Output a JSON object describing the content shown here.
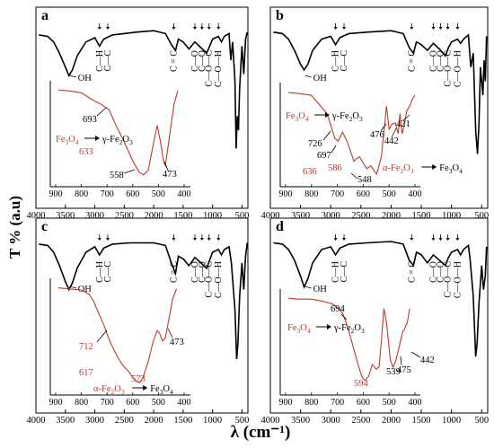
{
  "figure": {
    "ylabel": "T %  (a.u)",
    "xlabel": "λ (cm⁻¹)",
    "colors": {
      "main": "#000000",
      "inset": "#c0392b",
      "red_text": "#c0392b"
    }
  },
  "chart_data": [
    {
      "panel": "a",
      "type": "line",
      "x_axis": {
        "range": [
          4000,
          400
        ],
        "ticks": [
          4000,
          3500,
          3000,
          2500,
          2000,
          1500,
          1000,
          500
        ]
      },
      "main_spectrum": [
        [
          3950,
          0.93
        ],
        [
          3800,
          0.92
        ],
        [
          3700,
          0.88
        ],
        [
          3600,
          0.8
        ],
        [
          3500,
          0.7
        ],
        [
          3440,
          0.64
        ],
        [
          3380,
          0.68
        ],
        [
          3300,
          0.78
        ],
        [
          3150,
          0.88
        ],
        [
          3000,
          0.91
        ],
        [
          2920,
          0.85
        ],
        [
          2850,
          0.9
        ],
        [
          2700,
          0.93
        ],
        [
          2500,
          0.94
        ],
        [
          2300,
          0.95
        ],
        [
          2000,
          0.96
        ],
        [
          1800,
          0.94
        ],
        [
          1700,
          0.86
        ],
        [
          1630,
          0.82
        ],
        [
          1580,
          0.9
        ],
        [
          1500,
          0.88
        ],
        [
          1400,
          0.83
        ],
        [
          1300,
          0.88
        ],
        [
          1200,
          0.84
        ],
        [
          1100,
          0.8
        ],
        [
          1050,
          0.85
        ],
        [
          1000,
          0.9
        ],
        [
          900,
          0.92
        ],
        [
          850,
          0.88
        ],
        [
          800,
          0.92
        ],
        [
          720,
          0.94
        ],
        [
          690,
          0.75
        ],
        [
          660,
          0.88
        ],
        [
          620,
          0.6
        ],
        [
          600,
          0.12
        ],
        [
          580,
          0.35
        ],
        [
          560,
          0.25
        ],
        [
          540,
          0.55
        ],
        [
          500,
          0.85
        ],
        [
          470,
          0.65
        ],
        [
          440,
          0.9
        ],
        [
          410,
          0.95
        ]
      ],
      "peak_labels": [
        "OH",
        "C—H",
        "C—C",
        "C = C",
        "C—O",
        "C—O",
        "C—O—C",
        "C—O—H"
      ],
      "inset": {
        "x_ticks": [
          900,
          800,
          700,
          600,
          500,
          400
        ],
        "curve": [
          [
            890,
            0.96
          ],
          [
            850,
            0.95
          ],
          [
            800,
            0.93
          ],
          [
            760,
            0.86
          ],
          [
            720,
            0.8
          ],
          [
            693,
            0.75
          ],
          [
            660,
            0.55
          ],
          [
            633,
            0.4
          ],
          [
            600,
            0.2
          ],
          [
            575,
            0.08
          ],
          [
            558,
            0.05
          ],
          [
            540,
            0.1
          ],
          [
            520,
            0.38
          ],
          [
            505,
            0.58
          ],
          [
            492,
            0.4
          ],
          [
            480,
            0.2
          ],
          [
            473,
            0.15
          ],
          [
            460,
            0.4
          ],
          [
            440,
            0.8
          ],
          [
            425,
            0.95
          ]
        ],
        "annotations": [
          {
            "text": "693",
            "color": "black"
          },
          {
            "text": "633",
            "color": "red"
          },
          {
            "text": "558",
            "color": "black"
          },
          {
            "text": "473",
            "color": "black"
          }
        ],
        "phase_label": {
          "from": "Fe3O4",
          "to": "γ-Fe2O3"
        }
      }
    },
    {
      "panel": "b",
      "type": "line",
      "x_axis": {
        "range": [
          4000,
          400
        ],
        "ticks": [
          4000,
          3500,
          3000,
          2500,
          2000,
          1500,
          1000,
          500
        ]
      },
      "main_spectrum": [
        [
          3950,
          0.95
        ],
        [
          3800,
          0.94
        ],
        [
          3700,
          0.9
        ],
        [
          3600,
          0.82
        ],
        [
          3500,
          0.72
        ],
        [
          3440,
          0.68
        ],
        [
          3380,
          0.72
        ],
        [
          3300,
          0.82
        ],
        [
          3150,
          0.9
        ],
        [
          3000,
          0.92
        ],
        [
          2920,
          0.86
        ],
        [
          2850,
          0.91
        ],
        [
          2700,
          0.94
        ],
        [
          2400,
          0.95
        ],
        [
          2000,
          0.96
        ],
        [
          1800,
          0.94
        ],
        [
          1700,
          0.84
        ],
        [
          1630,
          0.8
        ],
        [
          1580,
          0.88
        ],
        [
          1500,
          0.86
        ],
        [
          1400,
          0.82
        ],
        [
          1300,
          0.87
        ],
        [
          1200,
          0.83
        ],
        [
          1100,
          0.78
        ],
        [
          1050,
          0.84
        ],
        [
          1000,
          0.88
        ],
        [
          900,
          0.9
        ],
        [
          850,
          0.87
        ],
        [
          800,
          0.9
        ],
        [
          720,
          0.93
        ],
        [
          680,
          0.7
        ],
        [
          640,
          0.8
        ],
        [
          600,
          0.25
        ],
        [
          570,
          0.08
        ],
        [
          545,
          0.3
        ],
        [
          520,
          0.7
        ],
        [
          480,
          0.5
        ],
        [
          460,
          0.75
        ],
        [
          440,
          0.6
        ],
        [
          420,
          0.92
        ]
      ],
      "peak_labels": [
        "OH",
        "C—H",
        "C—C",
        "C = C",
        "C—O",
        "C—O",
        "C—O—C",
        "C—O—H"
      ],
      "inset": {
        "x_ticks": [
          900,
          800,
          700,
          600,
          500,
          400
        ],
        "curve": [
          [
            890,
            0.95
          ],
          [
            850,
            0.94
          ],
          [
            800,
            0.92
          ],
          [
            770,
            0.82
          ],
          [
            740,
            0.72
          ],
          [
            726,
            0.6
          ],
          [
            710,
            0.45
          ],
          [
            697,
            0.42
          ],
          [
            680,
            0.52
          ],
          [
            660,
            0.4
          ],
          [
            636,
            0.2
          ],
          [
            615,
            0.25
          ],
          [
            600,
            0.18
          ],
          [
            586,
            0.12
          ],
          [
            570,
            0.15
          ],
          [
            555,
            0.08
          ],
          [
            548,
            0.06
          ],
          [
            530,
            0.25
          ],
          [
            510,
            0.8
          ],
          [
            500,
            0.55
          ],
          [
            490,
            0.6
          ],
          [
            476,
            0.62
          ],
          [
            465,
            0.5
          ],
          [
            458,
            0.72
          ],
          [
            450,
            0.5
          ],
          [
            442,
            0.58
          ],
          [
            432,
            0.75
          ],
          [
            421,
            0.8
          ],
          [
            410,
            0.88
          ],
          [
            400,
            0.92
          ]
        ],
        "annotations": [
          {
            "text": "726",
            "color": "black"
          },
          {
            "text": "697",
            "color": "black"
          },
          {
            "text": "636",
            "color": "red"
          },
          {
            "text": "586",
            "color": "red"
          },
          {
            "text": "548",
            "color": "black"
          },
          {
            "text": "476",
            "color": "black"
          },
          {
            "text": "442",
            "color": "black"
          },
          {
            "text": "421",
            "color": "black"
          }
        ],
        "phase_label": {
          "from": "Fe3O4",
          "to": "γ-Fe2O3"
        },
        "phase_label_2": {
          "from": "α-Fe2O3",
          "to": "Fe3O4"
        }
      }
    },
    {
      "panel": "c",
      "type": "line",
      "x_axis": {
        "range": [
          4000,
          400
        ],
        "ticks": [
          4000,
          3500,
          3000,
          2500,
          2000,
          1500,
          1000,
          500
        ]
      },
      "main_spectrum": [
        [
          3950,
          0.94
        ],
        [
          3800,
          0.93
        ],
        [
          3700,
          0.88
        ],
        [
          3600,
          0.78
        ],
        [
          3500,
          0.66
        ],
        [
          3440,
          0.6
        ],
        [
          3380,
          0.65
        ],
        [
          3300,
          0.76
        ],
        [
          3150,
          0.88
        ],
        [
          3000,
          0.92
        ],
        [
          2920,
          0.86
        ],
        [
          2850,
          0.91
        ],
        [
          2700,
          0.94
        ],
        [
          2400,
          0.95
        ],
        [
          2000,
          0.95
        ],
        [
          1800,
          0.93
        ],
        [
          1700,
          0.8
        ],
        [
          1630,
          0.72
        ],
        [
          1580,
          0.85
        ],
        [
          1500,
          0.83
        ],
        [
          1400,
          0.78
        ],
        [
          1300,
          0.84
        ],
        [
          1200,
          0.8
        ],
        [
          1100,
          0.76
        ],
        [
          1050,
          0.82
        ],
        [
          1000,
          0.88
        ],
        [
          900,
          0.9
        ],
        [
          850,
          0.86
        ],
        [
          800,
          0.9
        ],
        [
          720,
          0.92
        ],
        [
          680,
          0.8
        ],
        [
          620,
          0.45
        ],
        [
          590,
          0.08
        ],
        [
          570,
          0.2
        ],
        [
          540,
          0.55
        ],
        [
          500,
          0.8
        ],
        [
          470,
          0.6
        ],
        [
          440,
          0.85
        ],
        [
          410,
          0.95
        ]
      ],
      "peak_labels": [
        "OH",
        "C—H",
        "C—C",
        "C = C",
        "C—O",
        "C—O",
        "C—O—C",
        "C—O—H"
      ],
      "inset": {
        "x_ticks": [
          900,
          800,
          700,
          600,
          500,
          400
        ],
        "curve": [
          [
            890,
            0.96
          ],
          [
            850,
            0.95
          ],
          [
            800,
            0.94
          ],
          [
            770,
            0.9
          ],
          [
            750,
            0.82
          ],
          [
            730,
            0.7
          ],
          [
            712,
            0.6
          ],
          [
            690,
            0.45
          ],
          [
            660,
            0.3
          ],
          [
            640,
            0.22
          ],
          [
            617,
            0.16
          ],
          [
            600,
            0.1
          ],
          [
            585,
            0.06
          ],
          [
            573,
            0.05
          ],
          [
            560,
            0.1
          ],
          [
            540,
            0.25
          ],
          [
            520,
            0.45
          ],
          [
            505,
            0.55
          ],
          [
            495,
            0.52
          ],
          [
            485,
            0.45
          ],
          [
            473,
            0.48
          ],
          [
            460,
            0.65
          ],
          [
            445,
            0.85
          ],
          [
            430,
            0.95
          ]
        ],
        "annotations": [
          {
            "text": "712",
            "color": "red"
          },
          {
            "text": "617",
            "color": "red"
          },
          {
            "text": "573",
            "color": "red"
          },
          {
            "text": "473",
            "color": "black"
          }
        ],
        "phase_label": {
          "from": "α-Fe2O3",
          "to": "Fe3O4"
        }
      }
    },
    {
      "panel": "d",
      "type": "line",
      "x_axis": {
        "range": [
          4000,
          400
        ],
        "ticks": [
          4000,
          3500,
          3000,
          2500,
          2000,
          1500,
          1000,
          500
        ]
      },
      "main_spectrum": [
        [
          3950,
          0.95
        ],
        [
          3800,
          0.94
        ],
        [
          3700,
          0.9
        ],
        [
          3600,
          0.82
        ],
        [
          3500,
          0.7
        ],
        [
          3440,
          0.62
        ],
        [
          3380,
          0.68
        ],
        [
          3300,
          0.8
        ],
        [
          3150,
          0.9
        ],
        [
          3000,
          0.92
        ],
        [
          2920,
          0.86
        ],
        [
          2850,
          0.91
        ],
        [
          2700,
          0.94
        ],
        [
          2400,
          0.95
        ],
        [
          2000,
          0.96
        ],
        [
          1800,
          0.94
        ],
        [
          1700,
          0.82
        ],
        [
          1630,
          0.78
        ],
        [
          1580,
          0.88
        ],
        [
          1500,
          0.86
        ],
        [
          1400,
          0.8
        ],
        [
          1300,
          0.86
        ],
        [
          1200,
          0.82
        ],
        [
          1100,
          0.78
        ],
        [
          1050,
          0.84
        ],
        [
          1000,
          0.88
        ],
        [
          900,
          0.9
        ],
        [
          850,
          0.86
        ],
        [
          800,
          0.9
        ],
        [
          720,
          0.93
        ],
        [
          690,
          0.82
        ],
        [
          640,
          0.55
        ],
        [
          600,
          0.1
        ],
        [
          575,
          0.2
        ],
        [
          545,
          0.5
        ],
        [
          500,
          0.78
        ],
        [
          470,
          0.6
        ],
        [
          440,
          0.7
        ],
        [
          420,
          0.92
        ]
      ],
      "peak_labels": [
        "OH",
        "C—H",
        "C—C",
        "C = C",
        "C—O",
        "C—O",
        "C—O—C",
        "C—O—H"
      ],
      "inset": {
        "x_ticks": [
          900,
          800,
          700,
          600,
          500,
          400
        ],
        "curve": [
          [
            890,
            0.96
          ],
          [
            850,
            0.95
          ],
          [
            800,
            0.95
          ],
          [
            760,
            0.93
          ],
          [
            720,
            0.9
          ],
          [
            694,
            0.85
          ],
          [
            680,
            0.8
          ],
          [
            660,
            0.65
          ],
          [
            640,
            0.45
          ],
          [
            620,
            0.25
          ],
          [
            605,
            0.12
          ],
          [
            594,
            0.08
          ],
          [
            580,
            0.12
          ],
          [
            565,
            0.25
          ],
          [
            550,
            0.2
          ],
          [
            539,
            0.22
          ],
          [
            530,
            0.5
          ],
          [
            520,
            0.85
          ],
          [
            510,
            0.7
          ],
          [
            495,
            0.3
          ],
          [
            485,
            0.22
          ],
          [
            475,
            0.28
          ],
          [
            460,
            0.45
          ],
          [
            448,
            0.6
          ],
          [
            442,
            0.62
          ],
          [
            430,
            0.7
          ],
          [
            420,
            0.85
          ]
        ],
        "annotations": [
          {
            "text": "694",
            "color": "black"
          },
          {
            "text": "594",
            "color": "red"
          },
          {
            "text": "539",
            "color": "black"
          },
          {
            "text": "475",
            "color": "black"
          },
          {
            "text": "442",
            "color": "black"
          }
        ],
        "phase_label": {
          "from": "Fe3O4",
          "to": "γ-Fe2O3"
        }
      }
    }
  ]
}
